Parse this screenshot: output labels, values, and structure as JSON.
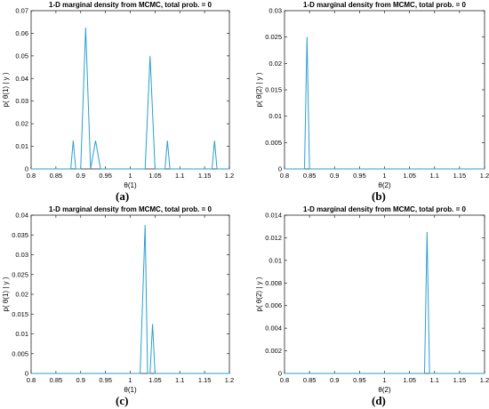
{
  "colors": {
    "line": "#2a9fd0",
    "axis": "#262626",
    "text": "#000000"
  },
  "panel_labels": [
    "(a)",
    "(b)",
    "(c)",
    "(d)"
  ],
  "chart_data": [
    {
      "type": "line",
      "title": "1-D marginal density from MCMC, total prob. = 0",
      "xlabel": "θ(1)",
      "ylabel": "p( θ(1) | y )",
      "xlim": [
        0.8,
        1.2
      ],
      "ylim": [
        0,
        0.07
      ],
      "xticks": [
        "0.8",
        "0.85",
        "0.9",
        "0.95",
        "1",
        "1.05",
        "1.1",
        "1.15",
        "1.2"
      ],
      "yticks": [
        "0",
        "0.01",
        "0.02",
        "0.03",
        "0.04",
        "0.05",
        "0.06",
        "0.07"
      ],
      "grid": false,
      "x": [
        0.8,
        0.88,
        0.885,
        0.89,
        0.9,
        0.91,
        0.92,
        0.93,
        0.94,
        1.03,
        1.04,
        1.05,
        1.07,
        1.075,
        1.08,
        1.165,
        1.17,
        1.175,
        1.2
      ],
      "y": [
        0,
        0,
        0.0125,
        0,
        0,
        0.0625,
        0,
        0.0125,
        0,
        0,
        0.05,
        0,
        0,
        0.0125,
        0,
        0,
        0.0125,
        0,
        0
      ]
    },
    {
      "type": "line",
      "title": "1-D marginal density from MCMC, total prob. = 0",
      "xlabel": "θ(2)",
      "ylabel": "p( θ(2) | y )",
      "xlim": [
        0.8,
        1.2
      ],
      "ylim": [
        0,
        0.03
      ],
      "xticks": [
        "0.8",
        "0.85",
        "0.9",
        "0.95",
        "1",
        "1.05",
        "1.1",
        "1.15",
        "1.2"
      ],
      "yticks": [
        "0",
        "0.005",
        "0.01",
        "0.015",
        "0.02",
        "0.025",
        "0.03"
      ],
      "grid": false,
      "x": [
        0.8,
        0.84,
        0.845,
        0.85,
        1.2
      ],
      "y": [
        0,
        0,
        0.025,
        0,
        0
      ]
    },
    {
      "type": "line",
      "title": "1-D marginal density from MCMC, total prob. = 0",
      "xlabel": "θ(1)",
      "ylabel": "p( θ(1) | y )",
      "xlim": [
        0.8,
        1.2
      ],
      "ylim": [
        0,
        0.04
      ],
      "xticks": [
        "0.8",
        "0.85",
        "0.9",
        "0.95",
        "1",
        "1.05",
        "1.1",
        "1.15",
        "1.2"
      ],
      "yticks": [
        "0",
        "0.005",
        "0.01",
        "0.015",
        "0.02",
        "0.025",
        "0.03",
        "0.035",
        "0.04"
      ],
      "grid": false,
      "x": [
        0.8,
        1.02,
        1.03,
        1.035,
        1.04,
        1.045,
        1.05,
        1.2
      ],
      "y": [
        0,
        0,
        0.0375,
        0,
        0,
        0.0125,
        0,
        0
      ]
    },
    {
      "type": "line",
      "title": "1-D marginal density from MCMC, total prob. = 0",
      "xlabel": "θ(2)",
      "ylabel": "p( θ(2) | y )",
      "xlim": [
        0.8,
        1.2
      ],
      "ylim": [
        0,
        0.014
      ],
      "xticks": [
        "0.8",
        "0.85",
        "0.9",
        "0.95",
        "1",
        "1.05",
        "1.1",
        "1.15",
        "1.2"
      ],
      "yticks": [
        "0",
        "0.002",
        "0.004",
        "0.006",
        "0.008",
        "0.01",
        "0.012",
        "0.014"
      ],
      "grid": false,
      "x": [
        0.8,
        1.08,
        1.085,
        1.09,
        1.2
      ],
      "y": [
        0,
        0,
        0.0125,
        0,
        0
      ]
    }
  ]
}
